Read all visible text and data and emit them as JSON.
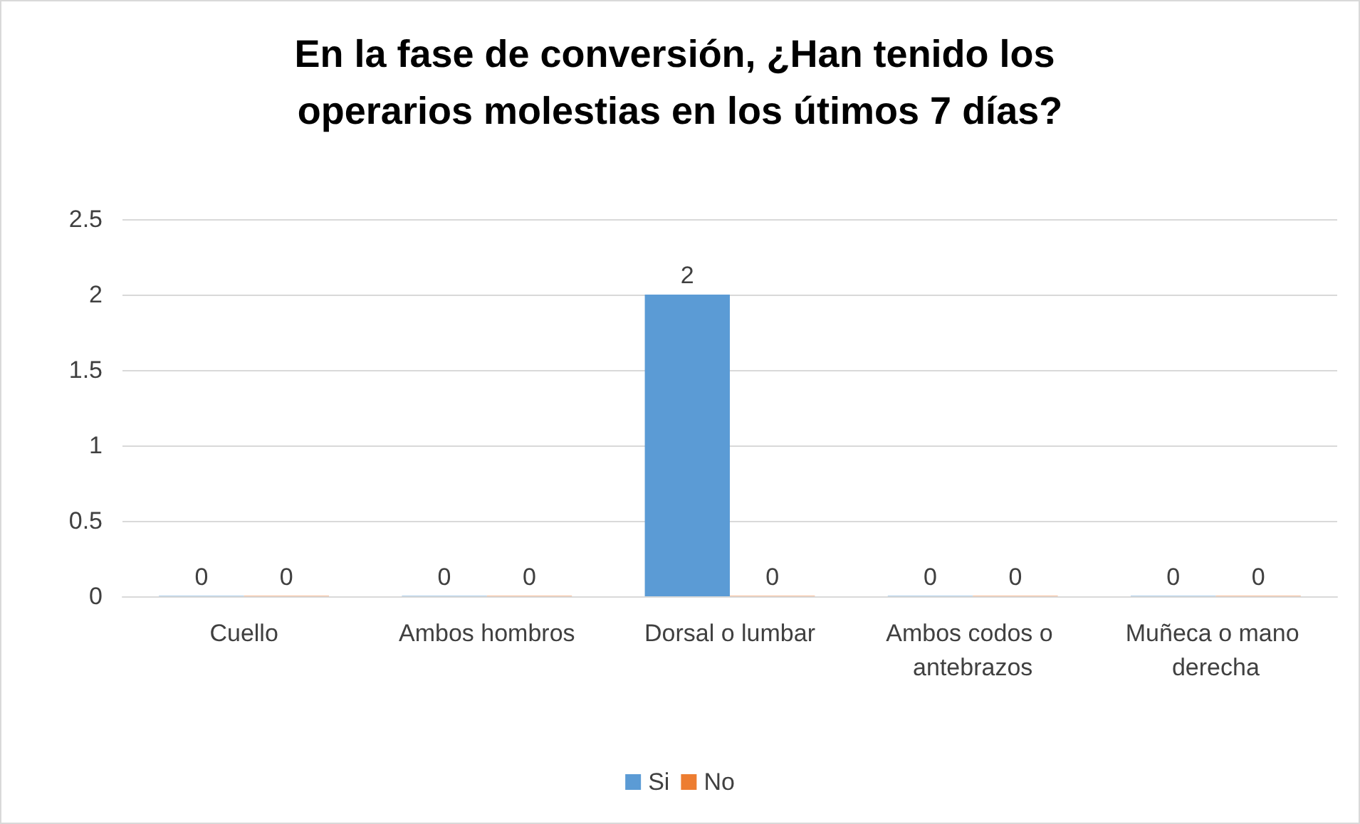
{
  "chart_data": {
    "type": "bar",
    "title": "En la fase de conversión, ¿Han tenido los operarios molestias en los útimos 7 días?",
    "categories": [
      "Cuello",
      "Ambos hombros",
      "Dorsal o lumbar",
      "Ambos codos o antebrazos",
      "Muñeca o mano derecha"
    ],
    "series": [
      {
        "name": "Si",
        "color": "#5b9bd5",
        "values": [
          0,
          0,
          2,
          0,
          0
        ]
      },
      {
        "name": "No",
        "color": "#ed7d31",
        "values": [
          0,
          0,
          0,
          0,
          0
        ]
      }
    ],
    "ylim": [
      0,
      2.5
    ],
    "yticks": [
      0,
      0.5,
      1,
      1.5,
      2,
      2.5
    ],
    "grid": "y",
    "legend": "bottom",
    "data_labels": true
  }
}
